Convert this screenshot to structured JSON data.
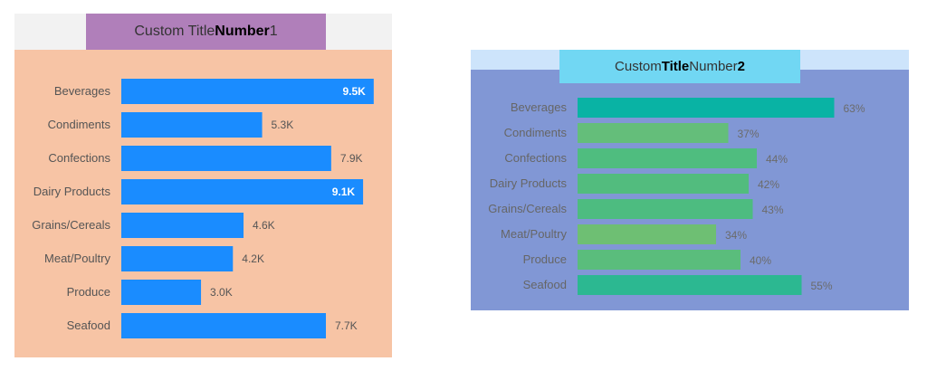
{
  "charts": [
    {
      "title": {
        "pre": "Custom Title ",
        "bold": "Number",
        "post": " 1"
      },
      "type": "bar",
      "orientation": "horizontal",
      "categories": [
        "Beverages",
        "Condiments",
        "Confections",
        "Dairy Products",
        "Grains/Cereals",
        "Meat/Poultry",
        "Produce",
        "Seafood"
      ],
      "values": [
        9.5,
        5.3,
        7.9,
        9.1,
        4.6,
        4.2,
        3.0,
        7.7
      ],
      "labels": [
        "9.5K",
        "5.3K",
        "7.9K",
        "9.1K",
        "4.6K",
        "4.2K",
        "3.0K",
        "7.7K"
      ],
      "labels_inside": [
        true,
        false,
        false,
        true,
        false,
        false,
        false,
        false
      ],
      "colors": {
        "bar": "#1a8cff",
        "background": "#f7c4a5",
        "title_bar": "#f2f2f2",
        "title_box": "#b07fba"
      }
    },
    {
      "title": {
        "pre": "Custom ",
        "bold": "Title",
        "mid": " Number ",
        "bold2": "2"
      },
      "type": "bar",
      "orientation": "horizontal",
      "categories": [
        "Beverages",
        "Condiments",
        "Confections",
        "Dairy Products",
        "Grains/Cereals",
        "Meat/Poultry",
        "Produce",
        "Seafood"
      ],
      "values": [
        63,
        37,
        44,
        42,
        43,
        34,
        40,
        55
      ],
      "labels": [
        "63%",
        "37%",
        "44%",
        "42%",
        "43%",
        "34%",
        "40%",
        "55%"
      ],
      "bar_colors": [
        "#09b3a4",
        "#64be7a",
        "#4fbd7f",
        "#52bc7e",
        "#4dbc80",
        "#6ebf73",
        "#5abd7c",
        "#2cb891"
      ],
      "colors": {
        "background": "#8197d5",
        "title_bar": "#cde4fb",
        "title_box": "#71d7f3"
      }
    }
  ],
  "chart_data": [
    {
      "type": "bar",
      "title": "Custom Title Number 1",
      "categories": [
        "Beverages",
        "Condiments",
        "Confections",
        "Dairy Products",
        "Grains/Cereals",
        "Meat/Poultry",
        "Produce",
        "Seafood"
      ],
      "values": [
        9500,
        5300,
        7900,
        9100,
        4600,
        4200,
        3000,
        7700
      ]
    },
    {
      "type": "bar",
      "title": "Custom Title Number 2",
      "categories": [
        "Beverages",
        "Condiments",
        "Confections",
        "Dairy Products",
        "Grains/Cereals",
        "Meat/Poultry",
        "Produce",
        "Seafood"
      ],
      "values": [
        63,
        37,
        44,
        42,
        43,
        34,
        40,
        55
      ]
    }
  ]
}
